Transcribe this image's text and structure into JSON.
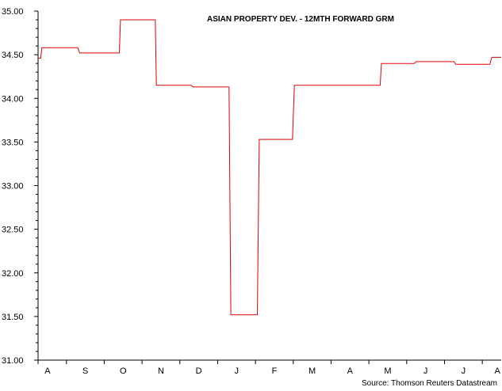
{
  "chart_data": {
    "type": "line",
    "title": "ASIAN PROPERTY DEV. - 12MTH FORWARD GRM",
    "source": "Source: Thomson Reuters Datastream",
    "xlabel": "",
    "ylabel": "",
    "ylim": [
      31.0,
      35.0
    ],
    "yticks": [
      "31.00",
      "31.50",
      "32.00",
      "32.50",
      "33.00",
      "33.50",
      "34.00",
      "34.50",
      "35.00"
    ],
    "xlim": [
      0,
      12.25
    ],
    "month_labels": [
      {
        "label": "A",
        "x": 0.25
      },
      {
        "label": "S",
        "x": 1.25
      },
      {
        "label": "O",
        "x": 2.25
      },
      {
        "label": "N",
        "x": 3.25
      },
      {
        "label": "D",
        "x": 4.25
      },
      {
        "label": "J",
        "x": 5.25
      },
      {
        "label": "F",
        "x": 6.25
      },
      {
        "label": "M",
        "x": 7.25
      },
      {
        "label": "A",
        "x": 8.25
      },
      {
        "label": "M",
        "x": 9.25
      },
      {
        "label": "J",
        "x": 10.25
      },
      {
        "label": "J",
        "x": 11.25
      },
      {
        "label": "A",
        "x": 12.15
      }
    ],
    "grid": false,
    "legend": "none",
    "line_color": "#e00000",
    "series": [
      {
        "x": [
          0,
          0.07,
          0.1,
          1.05,
          1.1,
          2.15,
          2.18,
          3.1,
          3.13,
          4.05,
          4.1,
          5.05,
          5.1,
          5.8,
          5.85,
          6.73,
          6.78,
          7.6,
          7.65,
          9.05,
          9.08,
          9.95,
          10.0,
          11.0,
          11.05,
          11.95,
          12.0,
          12.25
        ],
        "y": [
          34.46,
          34.46,
          34.58,
          34.58,
          34.52,
          34.52,
          34.9,
          34.9,
          34.15,
          34.15,
          34.13,
          34.13,
          31.52,
          31.52,
          33.53,
          33.53,
          34.15,
          34.15,
          34.15,
          34.15,
          34.4,
          34.4,
          34.42,
          34.42,
          34.39,
          34.39,
          34.47,
          34.47
        ]
      }
    ]
  }
}
